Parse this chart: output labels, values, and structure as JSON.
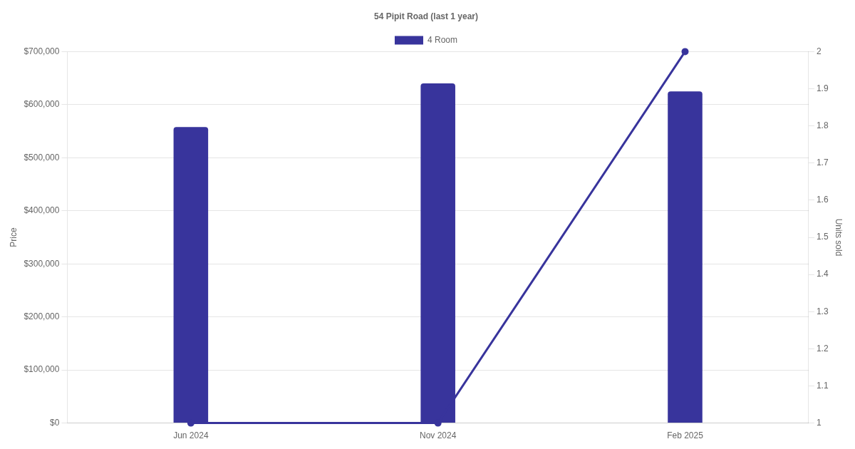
{
  "chart_data": {
    "type": "bar",
    "title": "54 Pipit Road (last 1 year)",
    "ylabel": "Price",
    "y2label": "Units sold",
    "categories": [
      "Jun 2024",
      "Nov 2024",
      "Feb 2025"
    ],
    "series": [
      {
        "name": "4 Room",
        "color": "#38349c",
        "values": [
          558000,
          640000,
          625000
        ]
      },
      {
        "type": "line",
        "axis": "y2",
        "color": "#38349c",
        "values": [
          1,
          1,
          2
        ],
        "marker": "circle"
      }
    ],
    "ylim": [
      0,
      700000
    ],
    "yticks": [
      {
        "value": 0,
        "label": "$0"
      },
      {
        "value": 100000,
        "label": "$100,000"
      },
      {
        "value": 200000,
        "label": "$200,000"
      },
      {
        "value": 300000,
        "label": "$300,000"
      },
      {
        "value": 400000,
        "label": "$400,000"
      },
      {
        "value": 500000,
        "label": "$500,000"
      },
      {
        "value": 600000,
        "label": "$600,000"
      },
      {
        "value": 700000,
        "label": "$700,000"
      }
    ],
    "y2lim": [
      1,
      2
    ],
    "y2ticks": [
      1,
      1.1,
      1.2,
      1.3,
      1.4,
      1.5,
      1.6,
      1.7,
      1.8,
      1.9,
      2
    ],
    "grid": "y",
    "legend": "top"
  }
}
